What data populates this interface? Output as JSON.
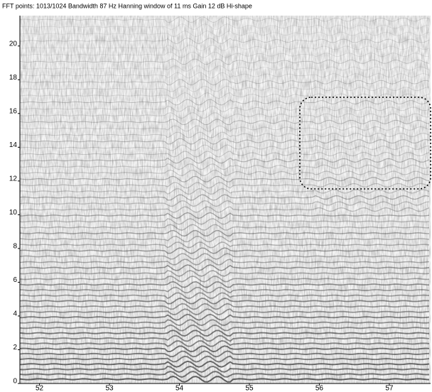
{
  "chart_data": {
    "type": "spectrogram",
    "title": "FFT points: 1013/1024  Bandwidth 87 Hz  Hanning window of 11 ms  Gain 12 dB  Hi-shape",
    "xlim": [
      51.72,
      57.59
    ],
    "xticks": [
      52,
      53,
      54,
      55,
      56,
      57
    ],
    "ylim": [
      0,
      21.8
    ],
    "yticks": [
      0,
      2,
      4,
      6,
      8,
      10,
      12,
      14,
      16,
      18,
      20
    ],
    "color": "#333333"
  }
}
